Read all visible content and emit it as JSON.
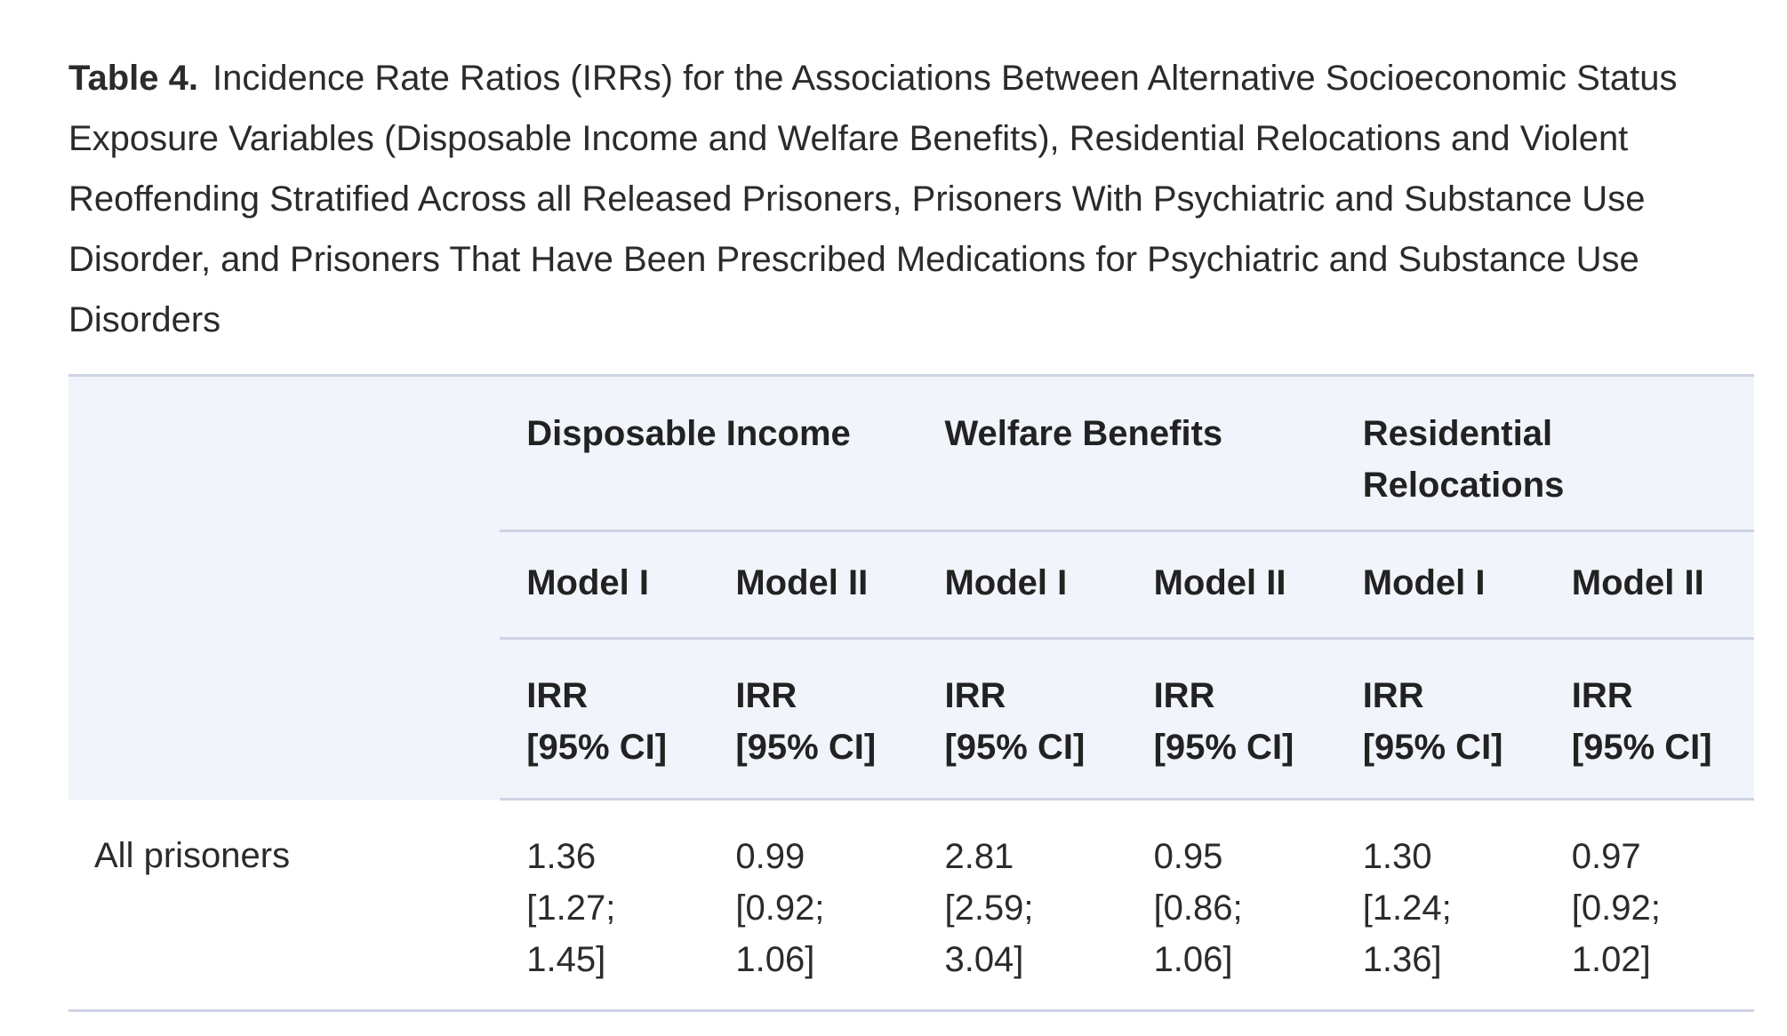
{
  "caption": {
    "label": "Table 4.",
    "text": "Incidence Rate Ratios (IRRs) for the Associations Between Alternative Socioeconomic Status Exposure Variables (Disposable Income and Welfare Benefits), Residential Relocations and Violent Reoffending Stratified Across all Released Prisoners, Prisoners With Psychiatric and Substance Use Disorder, and Prisoners That Have Been Prescribed Medications for Psychiatric and Substance Use Disorders"
  },
  "table": {
    "groups": [
      "Disposable Income",
      "Welfare Benefits",
      "Residential Relocations"
    ],
    "models": [
      "Model I",
      "Model II",
      "Model I",
      "Model II",
      "Model I",
      "Model II"
    ],
    "stat_line1": "IRR",
    "stat_line2": "[95% CI]",
    "rows": [
      {
        "label": "All prisoners",
        "cells": [
          {
            "irr": "1.36",
            "lo": "[1.27;",
            "hi": "1.45]"
          },
          {
            "irr": "0.99",
            "lo": "[0.92;",
            "hi": "1.06]"
          },
          {
            "irr": "2.81",
            "lo": "[2.59;",
            "hi": "3.04]"
          },
          {
            "irr": "0.95",
            "lo": "[0.86;",
            "hi": "1.06]"
          },
          {
            "irr": "1.30",
            "lo": "[1.24;",
            "hi": "1.36]"
          },
          {
            "irr": "0.97",
            "lo": "[0.92;",
            "hi": "1.02]"
          }
        ]
      }
    ]
  }
}
